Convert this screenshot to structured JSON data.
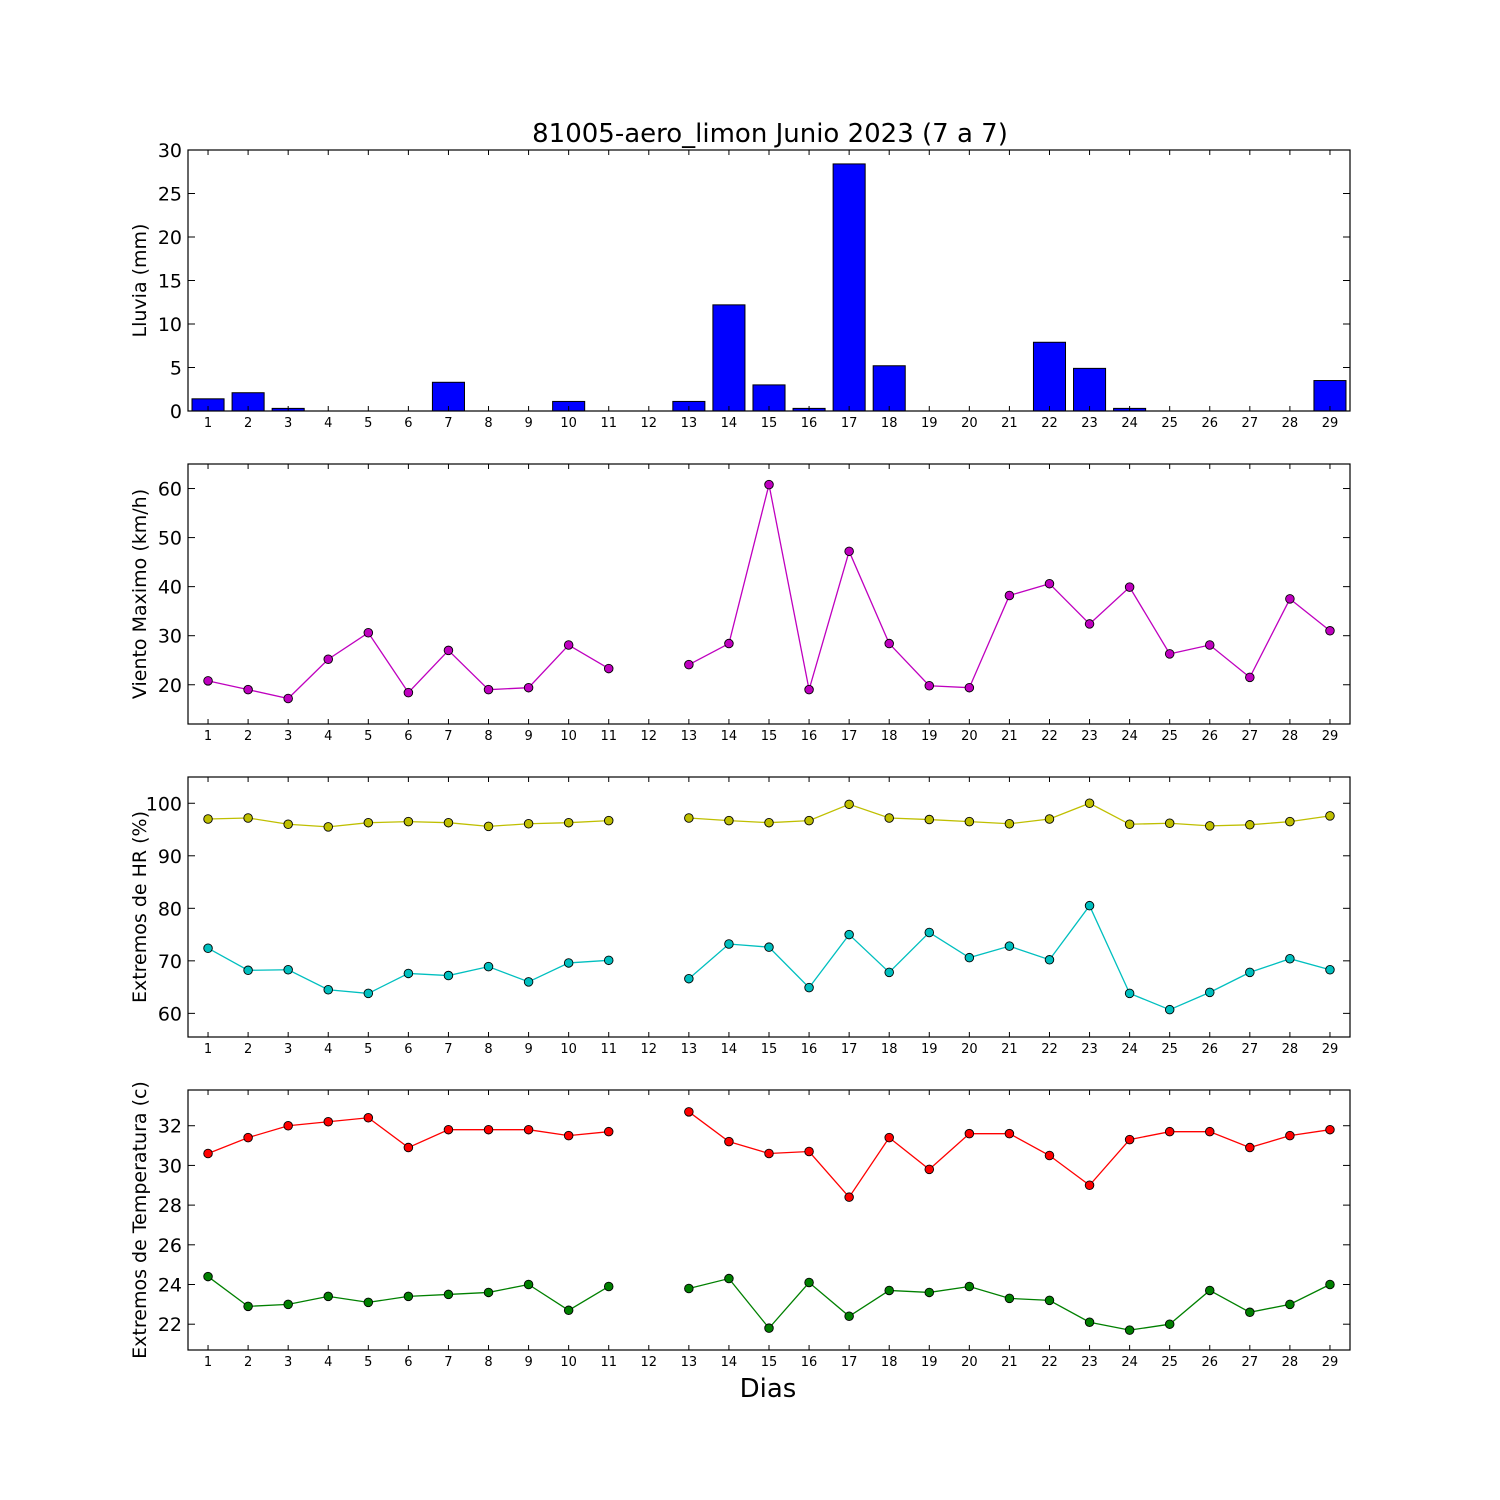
{
  "title": "81005-aero_limon Junio 2023  (7 a 7)",
  "xlabel": "Dias",
  "chart_data": [
    {
      "type": "bar",
      "ylabel": "Lluvia (mm)",
      "ylim": [
        0,
        30
      ],
      "yticks": [
        0,
        5,
        10,
        15,
        20,
        25,
        30
      ],
      "x": [
        1,
        2,
        3,
        4,
        5,
        6,
        7,
        8,
        9,
        10,
        11,
        12,
        13,
        14,
        15,
        16,
        17,
        18,
        19,
        20,
        21,
        22,
        23,
        24,
        25,
        26,
        27,
        28,
        29
      ],
      "series": [
        {
          "color": "#0000ff",
          "values": [
            1.4,
            2.1,
            0.3,
            0,
            0,
            0,
            3.3,
            0,
            0,
            1.1,
            0,
            0,
            1.1,
            12.2,
            3.0,
            0.3,
            28.4,
            5.2,
            0,
            0,
            0,
            7.9,
            4.9,
            0.3,
            0,
            0,
            0,
            0,
            3.5
          ]
        }
      ]
    },
    {
      "type": "line",
      "ylabel": "Viento Maximo (km/h)",
      "ylim": [
        12,
        65
      ],
      "yticks": [
        20,
        30,
        40,
        50,
        60
      ],
      "x": [
        1,
        2,
        3,
        4,
        5,
        6,
        7,
        8,
        9,
        10,
        11,
        12,
        13,
        14,
        15,
        16,
        17,
        18,
        19,
        20,
        21,
        22,
        23,
        24,
        25,
        26,
        27,
        28,
        29
      ],
      "series": [
        {
          "color": "#bf00bf",
          "values": [
            20.8,
            19.0,
            17.2,
            25.2,
            30.6,
            18.4,
            27.0,
            19.0,
            19.4,
            28.1,
            23.3,
            null,
            24.1,
            28.4,
            60.8,
            19.0,
            47.2,
            28.4,
            19.8,
            19.4,
            38.2,
            40.6,
            32.4,
            39.9,
            26.3,
            28.1,
            21.5,
            37.5,
            31.0
          ]
        }
      ]
    },
    {
      "type": "line",
      "ylabel": "Extremos de HR (%)",
      "ylim": [
        55.5,
        105
      ],
      "yticks": [
        60,
        70,
        80,
        90,
        100
      ],
      "x": [
        1,
        2,
        3,
        4,
        5,
        6,
        7,
        8,
        9,
        10,
        11,
        12,
        13,
        14,
        15,
        16,
        17,
        18,
        19,
        20,
        21,
        22,
        23,
        24,
        25,
        26,
        27,
        28,
        29
      ],
      "series": [
        {
          "color": "#bfbf00",
          "values": [
            97,
            97.2,
            96,
            95.5,
            96.3,
            96.5,
            96.3,
            95.6,
            96.1,
            96.3,
            96.7,
            null,
            97.2,
            96.7,
            96.3,
            96.7,
            99.8,
            97.2,
            96.9,
            96.5,
            96.1,
            97,
            100,
            96,
            96.2,
            95.7,
            95.9,
            96.5,
            97.6
          ]
        },
        {
          "color": "#00bfbf",
          "values": [
            72.4,
            68.2,
            68.3,
            64.5,
            63.8,
            67.6,
            67.2,
            68.9,
            66,
            69.6,
            70.1,
            null,
            66.6,
            73.2,
            72.6,
            64.9,
            75.0,
            67.8,
            75.4,
            70.6,
            72.8,
            70.2,
            80.5,
            63.8,
            60.7,
            64,
            67.8,
            70.4,
            68.3
          ]
        }
      ]
    },
    {
      "type": "line",
      "ylabel": "Extremos de Temperatura (c)",
      "ylim": [
        20.7,
        33.8
      ],
      "yticks": [
        22,
        24,
        26,
        28,
        30,
        32
      ],
      "x": [
        1,
        2,
        3,
        4,
        5,
        6,
        7,
        8,
        9,
        10,
        11,
        12,
        13,
        14,
        15,
        16,
        17,
        18,
        19,
        20,
        21,
        22,
        23,
        24,
        25,
        26,
        27,
        28,
        29
      ],
      "series": [
        {
          "color": "#ff0000",
          "values": [
            30.6,
            31.4,
            32,
            32.2,
            32.4,
            30.9,
            31.8,
            31.8,
            31.8,
            31.5,
            31.7,
            null,
            32.7,
            31.2,
            30.6,
            30.7,
            28.4,
            31.4,
            29.8,
            31.6,
            31.6,
            30.5,
            29,
            31.3,
            31.7,
            31.7,
            30.9,
            31.5,
            31.8
          ]
        },
        {
          "color": "#008000",
          "values": [
            24.4,
            22.9,
            23,
            23.4,
            23.1,
            23.4,
            23.5,
            23.6,
            24,
            22.7,
            23.9,
            null,
            23.8,
            24.3,
            21.8,
            24.1,
            22.4,
            23.7,
            23.6,
            23.9,
            23.3,
            23.2,
            22.1,
            21.7,
            22,
            23.7,
            22.6,
            23,
            24
          ]
        }
      ]
    }
  ]
}
